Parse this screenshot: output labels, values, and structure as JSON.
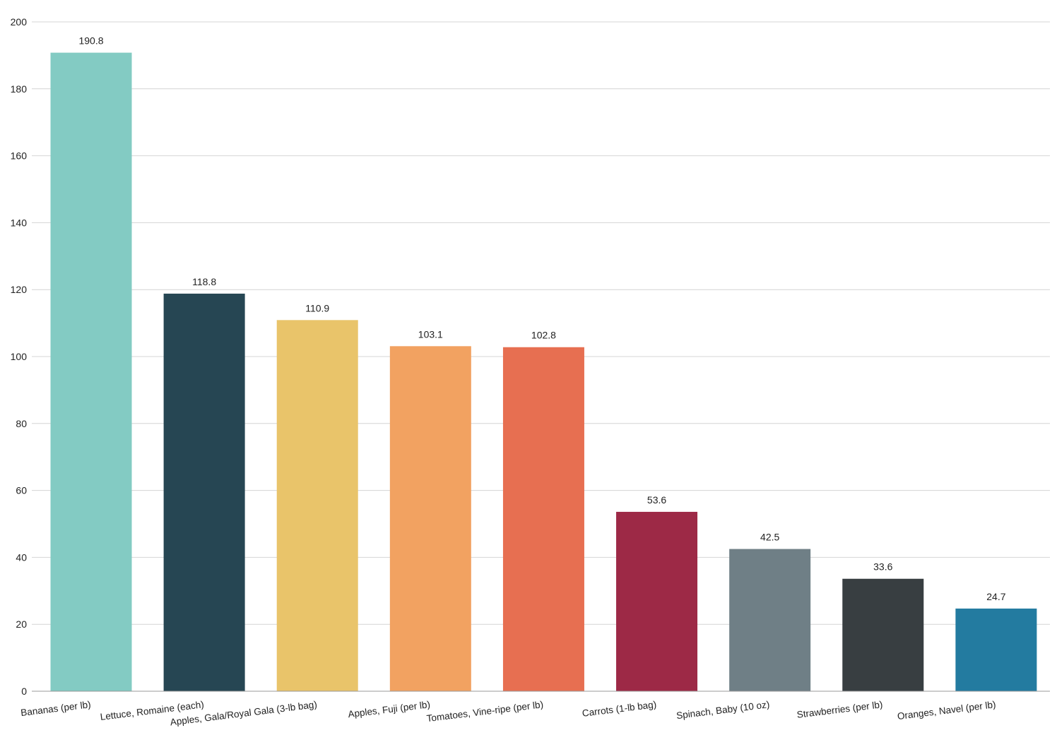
{
  "chart_data": {
    "type": "bar",
    "title": "",
    "xlabel": "",
    "ylabel": "",
    "ylim": [
      0,
      200
    ],
    "yticks": [
      0,
      20,
      40,
      60,
      80,
      100,
      120,
      140,
      160,
      180,
      200
    ],
    "grid": true,
    "legend": "none",
    "categories": [
      "Bananas (per lb)",
      "Lettuce, Romaine (each)",
      "Apples, Gala/Royal Gala (3-lb bag)",
      "Apples, Fuji (per lb)",
      "Tomatoes, Vine-ripe (per lb)",
      "Carrots (1-lb bag)",
      "Spinach, Baby (10 oz)",
      "Strawberries (per lb)",
      "Oranges, Navel (per lb)"
    ],
    "values": [
      190.8,
      118.8,
      110.9,
      103.1,
      102.8,
      53.6,
      42.5,
      33.6,
      24.7
    ],
    "value_labels": [
      "190.8",
      "118.8",
      "110.9",
      "103.1",
      "102.8",
      "53.6",
      "42.5",
      "33.6",
      "24.7"
    ],
    "colors": [
      "#83cbc3",
      "#264653",
      "#e9c46a",
      "#f2a261",
      "#e76f51",
      "#9d2946",
      "#6f7f86",
      "#383e41",
      "#237ba0"
    ]
  }
}
